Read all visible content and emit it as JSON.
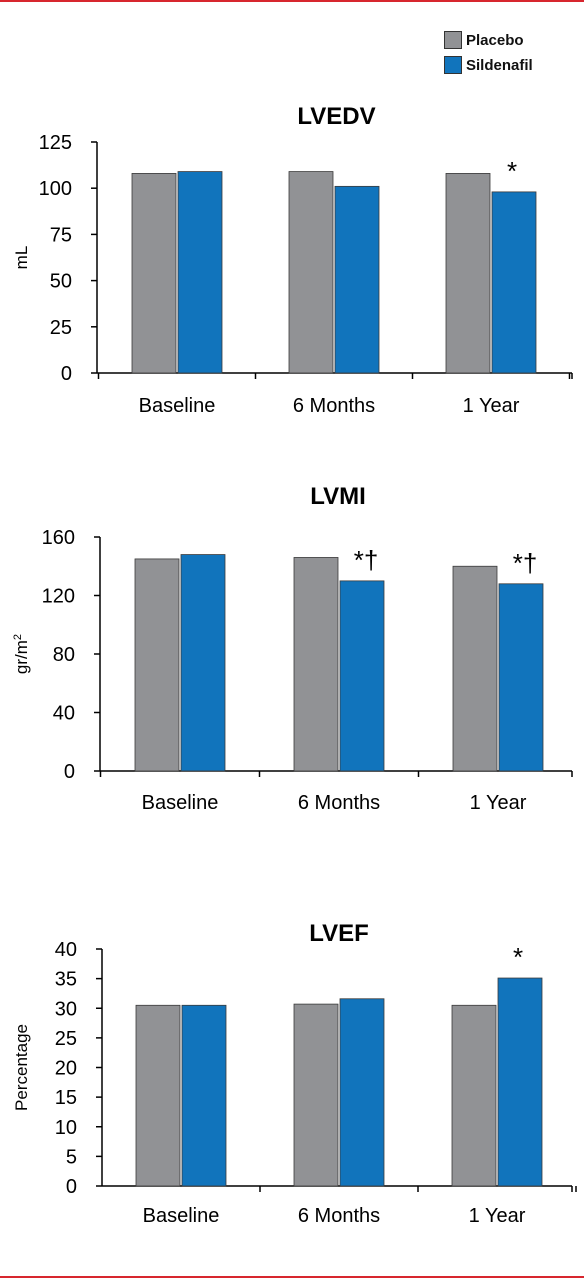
{
  "legend": {
    "placement": "top-right",
    "items": [
      {
        "label": "Placebo",
        "color": "#919295"
      },
      {
        "label": "Sildenafil",
        "color": "#1174bc"
      }
    ]
  },
  "colors": {
    "placebo": "#919295",
    "sildenafil": "#1174bc",
    "border": "#d7262e"
  },
  "chart_data": [
    {
      "type": "bar",
      "title": "LVEDV",
      "ylabel": "mL",
      "ylabel_sup": "",
      "ylim": [
        0,
        125
      ],
      "yticks": [
        0,
        25,
        50,
        75,
        100,
        125
      ],
      "categories": [
        "Baseline",
        "6 Months",
        "1 Year"
      ],
      "series": [
        {
          "name": "Placebo",
          "values": [
            108,
            109,
            108
          ]
        },
        {
          "name": "Sildenafil",
          "values": [
            109,
            101,
            98
          ]
        }
      ],
      "annotations": [
        {
          "category": "1 Year",
          "series": "Sildenafil",
          "text": "*"
        }
      ],
      "grid": false
    },
    {
      "type": "bar",
      "title": "LVMI",
      "ylabel": "gr/m",
      "ylabel_sup": "2",
      "ylim": [
        0,
        160
      ],
      "yticks": [
        0,
        40,
        80,
        120,
        160
      ],
      "categories": [
        "Baseline",
        "6 Months",
        "1 Year"
      ],
      "series": [
        {
          "name": "Placebo",
          "values": [
            145,
            146,
            140
          ]
        },
        {
          "name": "Sildenafil",
          "values": [
            148,
            130,
            128
          ]
        }
      ],
      "annotations": [
        {
          "category": "6 Months",
          "series": "Sildenafil",
          "text": "*†"
        },
        {
          "category": "1 Year",
          "series": "Sildenafil",
          "text": "*†"
        }
      ],
      "grid": false
    },
    {
      "type": "bar",
      "title": "LVEF",
      "ylabel": "Percentage",
      "ylabel_sup": "",
      "ylim": [
        0,
        40
      ],
      "yticks": [
        0,
        5,
        10,
        15,
        20,
        25,
        30,
        35,
        40
      ],
      "categories": [
        "Baseline",
        "6 Months",
        "1 Year"
      ],
      "series": [
        {
          "name": "Placebo",
          "values": [
            30.5,
            30.7,
            30.5
          ]
        },
        {
          "name": "Sildenafil",
          "values": [
            30.5,
            31.6,
            35.1
          ]
        }
      ],
      "annotations": [
        {
          "category": "1 Year",
          "series": "Sildenafil",
          "text": "*"
        }
      ],
      "grid": false
    }
  ]
}
